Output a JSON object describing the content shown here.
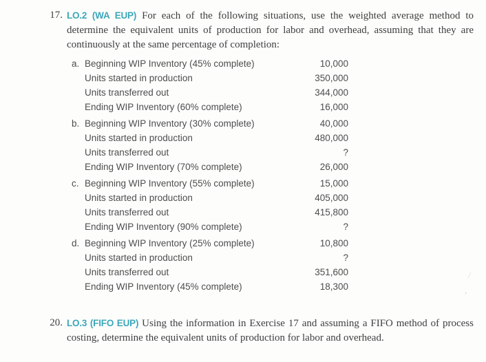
{
  "page": {
    "background": "#fdfdfc",
    "accent_color": "#3ca7ba",
    "artifact1": "/",
    "artifact2": ","
  },
  "exercise17": {
    "number": "17.",
    "lo_label": "LO.2 (WA EUP)",
    "intro": "For each of the following situations, use the weighted average method to determine the equivalent units of production for labor and overhead, assuming that they are continuously at the same percentage of completion:",
    "situations": [
      {
        "letter": "a.",
        "rows": [
          {
            "label": "Beginning WIP Inventory (45% complete)",
            "value": "10,000"
          },
          {
            "label": "Units started in production",
            "value": "350,000"
          },
          {
            "label": "Units transferred out",
            "value": "344,000"
          },
          {
            "label": "Ending WIP Inventory (60% complete)",
            "value": "16,000"
          }
        ]
      },
      {
        "letter": "b.",
        "rows": [
          {
            "label": "Beginning WIP Inventory (30% complete)",
            "value": "40,000"
          },
          {
            "label": "Units started in production",
            "value": "480,000"
          },
          {
            "label": "Units transferred out",
            "value": "?"
          },
          {
            "label": "Ending WIP Inventory (70% complete)",
            "value": "26,000"
          }
        ]
      },
      {
        "letter": "c.",
        "rows": [
          {
            "label": "Beginning WIP Inventory (55% complete)",
            "value": "15,000"
          },
          {
            "label": "Units started in production",
            "value": "405,000"
          },
          {
            "label": "Units transferred out",
            "value": "415,800"
          },
          {
            "label": "Ending WIP Inventory (90% complete)",
            "value": "?"
          }
        ]
      },
      {
        "letter": "d.",
        "rows": [
          {
            "label": "Beginning WIP Inventory (25% complete)",
            "value": "10,800"
          },
          {
            "label": "Units started in production",
            "value": "?"
          },
          {
            "label": "Units transferred out",
            "value": "351,600"
          },
          {
            "label": "Ending WIP Inventory (45% complete)",
            "value": "18,300"
          }
        ]
      }
    ]
  },
  "exercise20": {
    "number": "20.",
    "lo_label": "LO.3 (FIFO EUP)",
    "text": "Using the information in Exercise 17 and assuming a FIFO method of process costing, determine the equivalent units of production for labor and overhead."
  }
}
